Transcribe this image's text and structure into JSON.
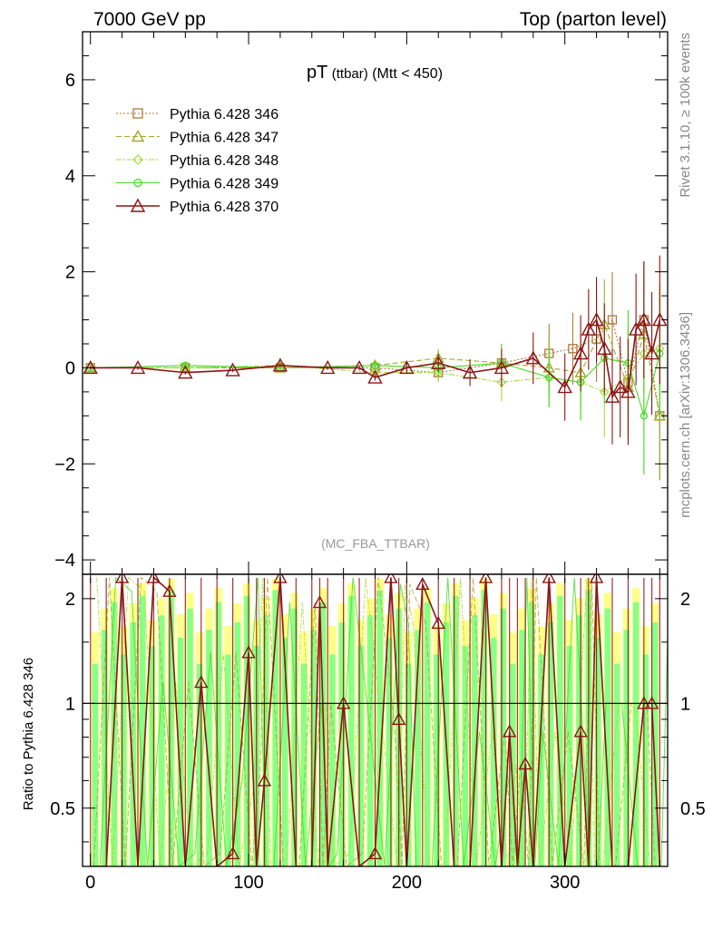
{
  "header": {
    "left": "7000 GeV pp",
    "right": "Top (parton level)"
  },
  "side_labels": {
    "top": "Rivet 3.1.10, ≥ 100k events",
    "bottom": "mcplots.cern.ch [arXiv:1306.3436]"
  },
  "chart_data": [
    {
      "type": "scatter",
      "title_main": "pT",
      "title_sub": "(ttbar)",
      "title_cut": "(Mtt < 450)",
      "watermark": "(MC_FBA_TTBAR)",
      "xlim": [
        -5,
        365
      ],
      "ylim": [
        -4.3,
        7
      ],
      "y_ticks": [
        -4,
        -2,
        0,
        2,
        4,
        6
      ],
      "y_tick_labels": [
        "−4",
        "−2",
        "0",
        "2",
        "4",
        "6"
      ],
      "legend_position": "top-left",
      "colors": {
        "p346": "#b07838",
        "p347": "#a6a82e",
        "p348": "#a8d83a",
        "p349": "#44dd22",
        "p370": "#8b1414"
      },
      "series": [
        {
          "name": "Pythia 6.428 346",
          "marker": "square",
          "dash": "2,2",
          "x": [
            0,
            60,
            120,
            180,
            220,
            260,
            290,
            305,
            320,
            330,
            340,
            350,
            360
          ],
          "y": [
            0,
            0,
            0,
            0,
            -0.1,
            0.1,
            0.3,
            0.4,
            0.6,
            1.0,
            -0.3,
            1.0,
            -1.0
          ]
        },
        {
          "name": "Pythia 6.428 347",
          "marker": "triangle",
          "dash": "6,3",
          "x": [
            0,
            60,
            120,
            180,
            220,
            260,
            290,
            310,
            325,
            340,
            350,
            360
          ],
          "y": [
            0,
            0,
            0,
            0.05,
            0.2,
            0.1,
            0,
            -0.1,
            0.9,
            -0.4,
            0.7,
            -1.0
          ]
        },
        {
          "name": "Pythia 6.428 348",
          "marker": "diamond",
          "dash": "6,2,2,2",
          "x": [
            0,
            60,
            120,
            180,
            220,
            260,
            290,
            310,
            325,
            340,
            350,
            360
          ],
          "y": [
            0,
            0,
            0.05,
            -0.1,
            -0.1,
            -0.3,
            -0.2,
            -0.3,
            -0.5,
            -0.2,
            0.3,
            0.4
          ]
        },
        {
          "name": "Pythia 6.428 349",
          "marker": "circle",
          "dash": "",
          "x": [
            0,
            60,
            120,
            180,
            220,
            260,
            290,
            310,
            325,
            340,
            350,
            360
          ],
          "y": [
            0,
            0.05,
            0,
            0.05,
            0,
            0.1,
            -0.2,
            -0.3,
            0.2,
            0.1,
            -1.0,
            0.3
          ]
        },
        {
          "name": "Pythia 6.428 370",
          "marker": "triangle",
          "dash": "",
          "x": [
            0,
            30,
            60,
            90,
            120,
            150,
            170,
            180,
            200,
            220,
            240,
            260,
            280,
            300,
            310,
            315,
            320,
            325,
            330,
            335,
            340,
            345,
            350,
            355,
            360
          ],
          "y": [
            0,
            0,
            -0.1,
            -0.05,
            0.05,
            0,
            0,
            -0.2,
            0,
            0.1,
            -0.1,
            0,
            0.2,
            -0.4,
            0.3,
            0.8,
            1.0,
            0.4,
            -0.6,
            -0.4,
            -0.5,
            0.8,
            1.0,
            0.3,
            1.0
          ]
        }
      ]
    },
    {
      "type": "scatter",
      "ylabel": "Ratio to Pythia 6.428 346",
      "xlim": [
        -5,
        365
      ],
      "ylim": [
        0.34,
        2.35
      ],
      "y_ticks": [
        0.5,
        1,
        2
      ],
      "y_tick_labels": [
        "0.5",
        "1",
        "2"
      ],
      "x_ticks": [
        0,
        100,
        200,
        300
      ],
      "x_tick_labels": [
        "0",
        "100",
        "200",
        "300"
      ],
      "reference_line": 1,
      "band_colors": {
        "outer": "#ffff88",
        "inner": "#88ff88"
      },
      "series": [
        {
          "name": "Pythia 6.428 370",
          "x": [
            0,
            10,
            20,
            30,
            40,
            50,
            60,
            70,
            80,
            90,
            100,
            105,
            110,
            120,
            130,
            140,
            145,
            150,
            160,
            170,
            180,
            190,
            195,
            200,
            210,
            220,
            230,
            240,
            250,
            260,
            265,
            270,
            275,
            280,
            290,
            300,
            310,
            315,
            320,
            330,
            340,
            350,
            355,
            360
          ],
          "y": [
            0.34,
            0.34,
            2.3,
            0.34,
            2.3,
            2.1,
            0.34,
            1.15,
            0.34,
            0.37,
            1.4,
            0.34,
            0.6,
            2.3,
            0.34,
            0.34,
            1.95,
            0.34,
            1.0,
            0.34,
            0.37,
            2.3,
            0.9,
            0.34,
            2.2,
            1.7,
            0.34,
            0.34,
            2.3,
            0.34,
            0.83,
            0.34,
            0.67,
            0.34,
            2.3,
            0.34,
            0.83,
            0.34,
            2.3,
            0.34,
            0.34,
            1.0,
            1.0,
            0.34
          ]
        }
      ]
    }
  ]
}
